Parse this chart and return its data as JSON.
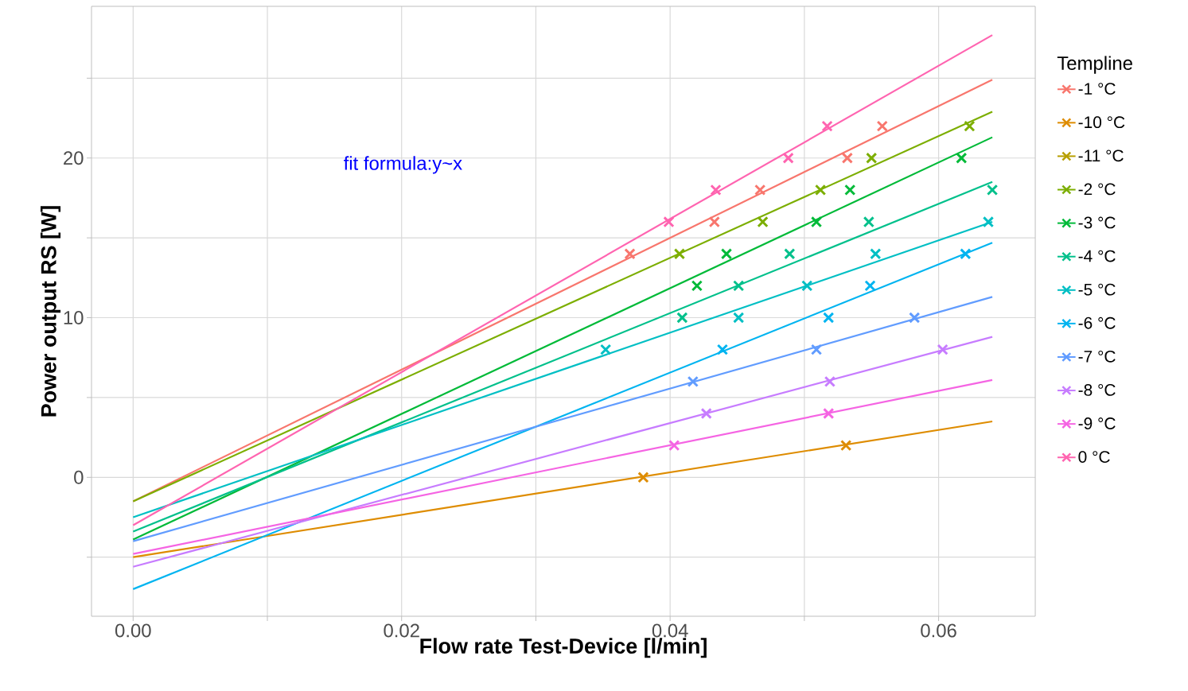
{
  "chart_data": {
    "type": "scatter",
    "xlabel": "Flow rate Test-Device [l/min]",
    "ylabel": "Power output RS [W]",
    "legend_title": "Templine",
    "legend": "right",
    "grid": true,
    "marker": "cross",
    "annotations": [
      "fit formula:y~x"
    ],
    "xlim": [
      -0.0031,
      0.0672
    ],
    "ylim": [
      -8.7,
      29.5
    ],
    "xticks": [
      {
        "value": 0,
        "label": "0.00"
      },
      {
        "value": 0.01,
        "label": null
      },
      {
        "value": 0.02,
        "label": "0.02"
      },
      {
        "value": 0.03,
        "label": null
      },
      {
        "value": 0.04,
        "label": "0.04"
      },
      {
        "value": 0.05,
        "label": null
      },
      {
        "value": 0.06,
        "label": "0.06"
      }
    ],
    "yticks": [
      {
        "value": -5,
        "label": null
      },
      0,
      {
        "value": 5,
        "label": null
      },
      10,
      {
        "value": 15,
        "label": null
      },
      20,
      {
        "value": 25,
        "label": null
      }
    ],
    "series": [
      {
        "name": "-1 °C",
        "color": "#f8766d",
        "x": [
          0.037,
          0.0433,
          0.0467,
          0.0532,
          0.0558
        ],
        "values": [
          14,
          16,
          18,
          20,
          22
        ]
      },
      {
        "name": "-10 °C",
        "color": "#de8c00",
        "x": [
          0.038,
          0.0531
        ],
        "values": [
          0,
          2
        ]
      },
      {
        "name": "-11 °C",
        "color": "#b79f00"
      },
      {
        "name": "-2 °C",
        "color": "#7cae00",
        "x": [
          0.0407,
          0.0469,
          0.0512,
          0.055,
          0.0623
        ],
        "values": [
          14,
          16,
          18,
          20,
          22
        ]
      },
      {
        "name": "-3 °C",
        "color": "#00ba38",
        "x": [
          0.042,
          0.0442,
          0.0509,
          0.0534,
          0.0617
        ],
        "values": [
          12,
          14,
          16,
          18,
          20
        ]
      },
      {
        "name": "-4 °C",
        "color": "#00c08b",
        "x": [
          0.0409,
          0.0451,
          0.0489,
          0.0548,
          0.064
        ],
        "values": [
          10,
          12,
          14,
          16,
          18
        ]
      },
      {
        "name": "-5 °C",
        "color": "#00bfc4",
        "x": [
          0.0352,
          0.0451,
          0.0502,
          0.0553,
          0.0637
        ],
        "values": [
          8,
          10,
          12,
          14,
          16
        ]
      },
      {
        "name": "-6 °C",
        "color": "#00b4f0",
        "x": [
          0.0439,
          0.0518,
          0.0549,
          0.062
        ],
        "values": [
          8,
          10,
          12,
          14
        ]
      },
      {
        "name": "-7 °C",
        "color": "#619cff",
        "x": [
          0.0417,
          0.0509,
          0.0582
        ],
        "values": [
          6,
          8,
          10
        ]
      },
      {
        "name": "-8 °C",
        "color": "#c77cff",
        "x": [
          0.0427,
          0.0519,
          0.0603
        ],
        "values": [
          4,
          6,
          8
        ]
      },
      {
        "name": "-9 °C",
        "color": "#f564e3",
        "x": [
          0.0403,
          0.0518
        ],
        "values": [
          2,
          4
        ]
      },
      {
        "name": "0 °C",
        "color": "#ff64b0",
        "x": [
          0.0399,
          0.0434,
          0.0488,
          0.0517
        ],
        "values": [
          16,
          18,
          20,
          22
        ]
      },
      {
        "color": "#f8766d",
        "type": "line",
        "x": [
          0,
          0.064
        ],
        "values": [
          -1.5,
          24.9
        ],
        "marker": "none"
      },
      {
        "color": "#de8c00",
        "type": "line",
        "x": [
          0,
          0.064
        ],
        "values": [
          -5.0,
          3.5
        ],
        "marker": "none"
      },
      {
        "color": "#7cae00",
        "type": "line",
        "x": [
          0,
          0.064
        ],
        "values": [
          -1.5,
          22.9
        ],
        "marker": "none"
      },
      {
        "color": "#00ba38",
        "type": "line",
        "x": [
          0,
          0.064
        ],
        "values": [
          -3.9,
          21.3
        ],
        "marker": "none"
      },
      {
        "color": "#00c08b",
        "type": "line",
        "x": [
          0,
          0.064
        ],
        "values": [
          -3.4,
          18.5
        ],
        "marker": "none"
      },
      {
        "color": "#00bfc4",
        "type": "line",
        "x": [
          0,
          0.064
        ],
        "values": [
          -2.5,
          16.0
        ],
        "marker": "none"
      },
      {
        "color": "#00b4f0",
        "type": "line",
        "x": [
          0,
          0.064
        ],
        "values": [
          -7.0,
          14.7
        ],
        "marker": "none"
      },
      {
        "color": "#619cff",
        "type": "line",
        "x": [
          0,
          0.064
        ],
        "values": [
          -4.0,
          11.3
        ],
        "marker": "none"
      },
      {
        "color": "#c77cff",
        "type": "line",
        "x": [
          0,
          0.064
        ],
        "values": [
          -5.6,
          8.8
        ],
        "marker": "none"
      },
      {
        "color": "#f564e3",
        "type": "line",
        "x": [
          0,
          0.064
        ],
        "values": [
          -4.8,
          6.1
        ],
        "marker": "none"
      },
      {
        "color": "#ff64b0",
        "type": "line",
        "x": [
          0,
          0.064
        ],
        "values": [
          -3.0,
          27.7
        ],
        "marker": "none"
      }
    ]
  }
}
